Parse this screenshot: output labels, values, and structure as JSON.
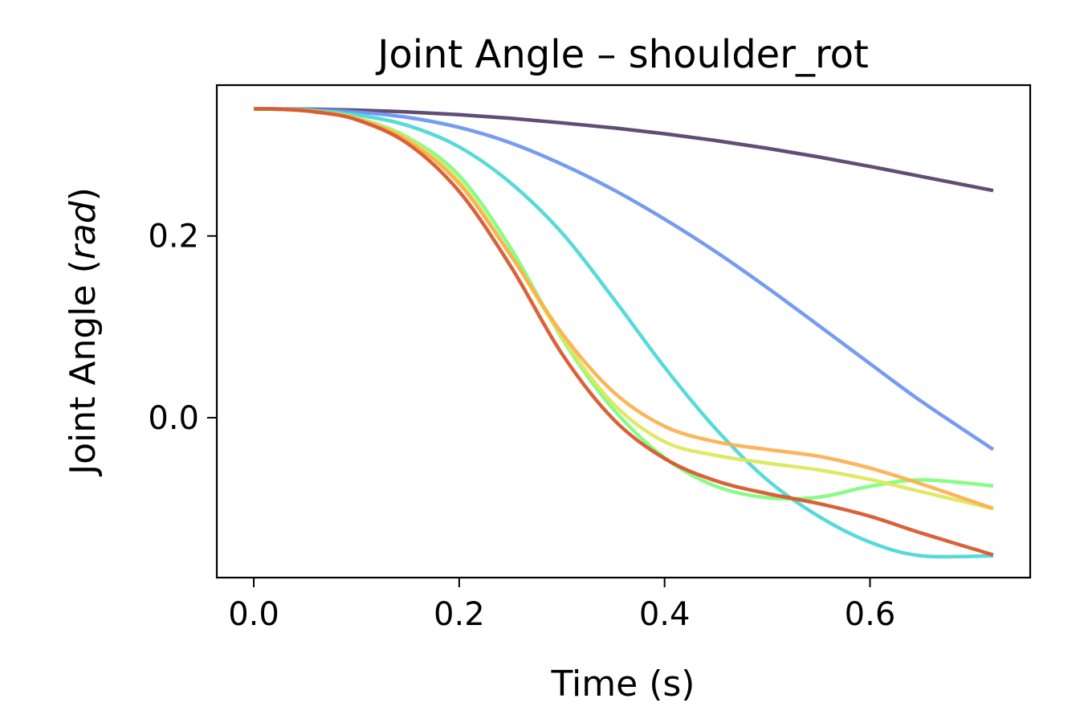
{
  "chart_data": {
    "type": "line",
    "title": "Joint Angle – shoulder_rot",
    "xlabel": "Time (s)",
    "ylabel_main": "Joint Angle (",
    "ylabel_unit": "rad",
    "ylabel_close": ")",
    "xlim": [
      -0.036,
      0.756
    ],
    "ylim": [
      -0.176,
      0.366
    ],
    "grid": false,
    "legend": "none",
    "x_ticks": [
      {
        "value": 0.0,
        "label": "0.0"
      },
      {
        "value": 0.2,
        "label": "0.2"
      },
      {
        "value": 0.4,
        "label": "0.4"
      },
      {
        "value": 0.6,
        "label": "0.6"
      }
    ],
    "y_ticks": [
      {
        "value": 0.0,
        "label": "0.0"
      },
      {
        "value": 0.2,
        "label": "0.2"
      }
    ],
    "x": [
      0.0,
      0.03,
      0.06,
      0.1,
      0.15,
      0.2,
      0.25,
      0.3,
      0.35,
      0.4,
      0.45,
      0.5,
      0.55,
      0.6,
      0.65,
      0.72
    ],
    "series": [
      {
        "color": "#553f6a",
        "values": [
          0.34,
          0.3398,
          0.3395,
          0.3385,
          0.3365,
          0.3335,
          0.3295,
          0.3245,
          0.319,
          0.3125,
          0.305,
          0.2965,
          0.287,
          0.2765,
          0.2655,
          0.25
        ]
      },
      {
        "color": "#6b95ef",
        "values": [
          0.34,
          0.3397,
          0.3388,
          0.3365,
          0.3305,
          0.3195,
          0.3025,
          0.279,
          0.251,
          0.2185,
          0.1825,
          0.143,
          0.1015,
          0.0595,
          0.018,
          -0.035
        ]
      },
      {
        "color": "#4ad7d8",
        "values": [
          0.34,
          0.3395,
          0.338,
          0.3335,
          0.3215,
          0.298,
          0.2585,
          0.2035,
          0.1315,
          0.0555,
          -0.0125,
          -0.0685,
          -0.1085,
          -0.137,
          -0.152,
          -0.152
        ]
      },
      {
        "color": "#80fc7d",
        "values": [
          0.34,
          0.3393,
          0.337,
          0.33,
          0.3085,
          0.2665,
          0.187,
          0.0875,
          0.0095,
          -0.044,
          -0.0755,
          -0.088,
          -0.0875,
          -0.0755,
          -0.0685,
          -0.075
        ]
      },
      {
        "color": "#dbe85a",
        "values": [
          0.34,
          0.3393,
          0.337,
          0.3295,
          0.3065,
          0.26,
          0.1795,
          0.089,
          0.0155,
          -0.0265,
          -0.0415,
          -0.05,
          -0.0575,
          -0.068,
          -0.0815,
          -0.1
        ]
      },
      {
        "color": "#fcaf4e",
        "values": [
          0.34,
          0.3393,
          0.3368,
          0.329,
          0.305,
          0.2575,
          0.179,
          0.093,
          0.0285,
          -0.0095,
          -0.0265,
          -0.035,
          -0.0425,
          -0.0555,
          -0.073,
          -0.1
        ]
      },
      {
        "color": "#d8552c",
        "values": [
          0.34,
          0.3393,
          0.3365,
          0.328,
          0.3015,
          0.249,
          0.167,
          0.0705,
          -0.0015,
          -0.045,
          -0.0695,
          -0.0835,
          -0.0945,
          -0.1085,
          -0.127,
          -0.151
        ]
      }
    ]
  }
}
